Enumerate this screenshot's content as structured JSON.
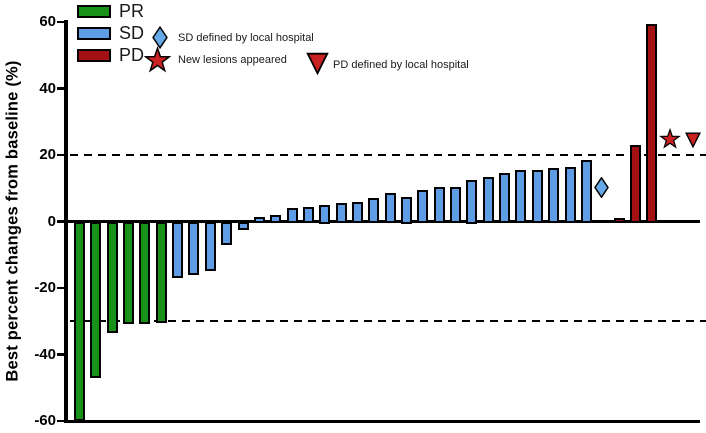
{
  "colors": {
    "pr_green": "#179117",
    "sd_blue": "#5E9DE6",
    "sd_marker_blue": "#66A9E9",
    "pd_dark_red": "#A31114",
    "pd_marker_red": "#C82222",
    "axis_black": "#000000",
    "background": "#FFFFFF"
  },
  "y_axis": {
    "title": "Best percent changes from baseline (%)",
    "tick_labels": [
      "60",
      "40",
      "20",
      "0",
      "-20",
      "-40",
      "-60"
    ]
  },
  "legend": {
    "items": [
      {
        "label": "PR",
        "color": "#179117"
      },
      {
        "label": "SD",
        "color": "#5E9DE6"
      },
      {
        "label": "PD",
        "color": "#A31114"
      }
    ],
    "markers": [
      {
        "shape": "diamond",
        "label": "SD defined by local hospital",
        "color": "#66A9E9"
      },
      {
        "shape": "star",
        "label": "New lesions appeared",
        "color": "#C82222"
      },
      {
        "shape": "triangle-down",
        "label": "PD defined by local hospital",
        "color": "#C82222"
      }
    ]
  },
  "chart_data": {
    "type": "bar",
    "title": "",
    "xlabel": "",
    "ylabel": "Best percent changes from baseline (%)",
    "ylim": [
      -60,
      60
    ],
    "yticks": [
      60,
      40,
      20,
      0,
      -20,
      -40,
      -60
    ],
    "reference_lines": [
      20,
      -30
    ],
    "grid": false,
    "legend_position": "top-left",
    "series": [
      {
        "name": "PR",
        "color": "#179117",
        "values": [
          -59.5,
          -46.5,
          -33,
          -30.5,
          -30.5,
          -30
        ]
      },
      {
        "name": "SD",
        "color": "#5E9DE6",
        "values": [
          -16.5,
          -15.5,
          -14.5,
          -6.5,
          -2,
          1.5,
          2,
          4,
          4.5,
          5,
          5.5,
          6,
          7,
          8.5,
          7.5,
          9.5,
          10.5,
          10.5,
          12.5,
          13.5,
          14.5,
          15.5,
          15.5,
          16,
          16.5,
          18.5
        ]
      },
      {
        "name": "PD",
        "color": "#A31114",
        "values": [
          1,
          23,
          59.5
        ]
      }
    ],
    "annotations": [
      {
        "shape": "diamond",
        "label": "SD defined by local hospital",
        "value": 10,
        "after_bar_index": 31
      },
      {
        "shape": "star",
        "label": "New lesions appeared",
        "value": 25,
        "position": "right of tallest PD bar"
      },
      {
        "shape": "triangle-down",
        "label": "PD defined by local hospital",
        "value": 24.5,
        "position": "far right"
      }
    ]
  }
}
